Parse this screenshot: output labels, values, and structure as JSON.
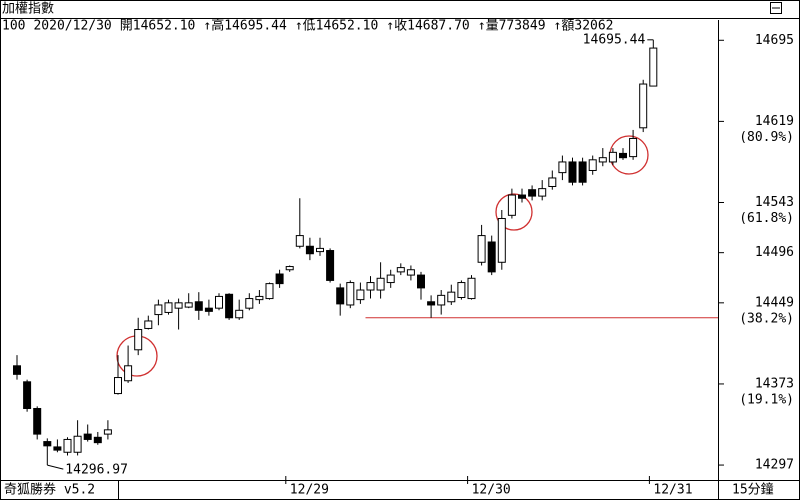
{
  "header": {
    "title": "加權指數",
    "info": [
      "100",
      "2020/12/30",
      "開14652.10",
      "↑高14695.44",
      "↑低14652.10",
      "↑收14687.70",
      "↑量773849",
      "↑額32062"
    ]
  },
  "footer": {
    "brand": "奇狐勝券 v5.2",
    "period": "15分鐘"
  },
  "chart_data": {
    "type": "candlestick",
    "up_color": "#ffffff",
    "down_color": "#000000",
    "line_color": "#000000",
    "open": [
      14390,
      14375,
      14350,
      14319,
      14314,
      14309,
      14309,
      14326,
      14323,
      14326,
      14364,
      14376,
      14405,
      14425,
      14438,
      14440,
      14444,
      14445,
      14450,
      14444,
      14444,
      14457,
      14435,
      14444,
      14452,
      14453,
      14476,
      14480,
      14502,
      14502,
      14497,
      14498,
      14463,
      14447,
      14452,
      14461,
      14461,
      14468,
      14478,
      14475,
      14475,
      14450,
      14447,
      14450,
      14454,
      14453,
      14487,
      14506,
      14487,
      14531,
      14550,
      14555,
      14549,
      14558,
      14571,
      14581,
      14581,
      14573,
      14581,
      14581,
      14589,
      14586,
      14613,
      14652.1
    ],
    "high": [
      14400,
      14377,
      14352,
      14322,
      14321,
      14323,
      14339,
      14335,
      14328,
      14339,
      14400,
      14409,
      14435,
      14437,
      14452,
      14452,
      14453,
      14458,
      14459,
      14452,
      14458,
      14458,
      14452,
      14458,
      14461,
      14468,
      14480,
      14484,
      14547,
      14510,
      14510,
      14500,
      14467,
      14470,
      14468,
      14474,
      14487,
      14480,
      14486,
      14484,
      14478,
      14456,
      14461,
      14466,
      14470,
      14475,
      14522,
      14512,
      14536,
      14556,
      14556,
      14559,
      14564,
      14573,
      14587,
      14585,
      14585,
      14587,
      14594,
      14594,
      14594,
      14611,
      14658,
      14695.44
    ],
    "low": [
      14377,
      14347,
      14321,
      14296.97,
      14309,
      14306,
      14306,
      14319,
      14316,
      14321,
      14363,
      14374,
      14400,
      14424,
      14428,
      14438,
      14424,
      14444,
      14433,
      14437,
      14442,
      14433,
      14433,
      14442,
      14448,
      14452,
      14463,
      14478,
      14500,
      14489,
      14493,
      14468,
      14437,
      14444,
      14448,
      14453,
      14453,
      14463,
      14475,
      14470,
      14452,
      14435,
      14438,
      14447,
      14452,
      14452,
      14484,
      14475,
      14480,
      14528,
      14543,
      14545,
      14545,
      14555,
      14564,
      14559,
      14559,
      14569,
      14577,
      14578,
      14583,
      14583,
      14609,
      14652.1
    ],
    "close": [
      14382,
      14350,
      14326,
      14315,
      14311,
      14321,
      14324,
      14321,
      14318,
      14330,
      14379,
      14390,
      14424,
      14432,
      14447,
      14449,
      14449,
      14449,
      14442,
      14441,
      14455,
      14435,
      14442,
      14453,
      14455,
      14467,
      14467,
      14483,
      14512,
      14495,
      14500,
      14470,
      14448,
      14468,
      14461,
      14468,
      14472,
      14475,
      14482,
      14480,
      14463,
      14447,
      14456,
      14459,
      14468,
      14472,
      14512,
      14478,
      14528,
      14550,
      14547,
      14549,
      14556,
      14566,
      14581,
      14562,
      14562,
      14583,
      14585,
      14590,
      14585,
      14603,
      14654,
      14687.7
    ],
    "ylim": [
      14283,
      14714
    ],
    "yticks": [
      14297,
      14373,
      14449,
      14496,
      14543,
      14619,
      14695
    ],
    "retracement_labels": [
      {
        "value": 14373,
        "label": "(19.1%)"
      },
      {
        "value": 14449,
        "label": "(38.2%)"
      },
      {
        "value": 14543,
        "label": "(61.8%)"
      },
      {
        "value": 14619,
        "label": "(80.9%)"
      }
    ],
    "x_labels": [
      {
        "value": 28,
        "label": "12/29"
      },
      {
        "value": 46,
        "label": "12/30"
      },
      {
        "value": 64,
        "label": "12/31"
      }
    ],
    "support_line": {
      "value": 14435,
      "from": 35,
      "color": "#d03030"
    }
  }
}
